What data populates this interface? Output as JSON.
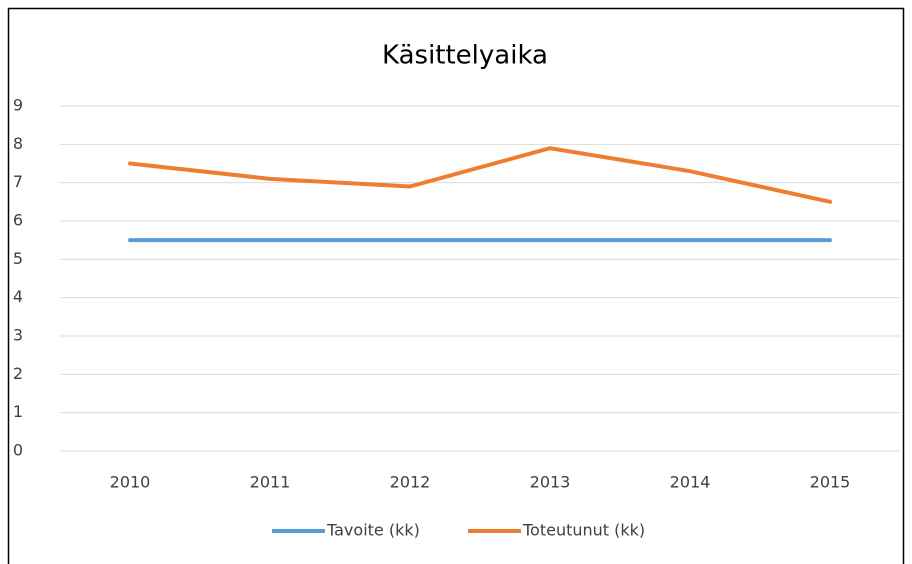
{
  "chart_data": {
    "type": "line",
    "title": "Käsittelyaika",
    "categories": [
      "2010",
      "2011",
      "2012",
      "2013",
      "2014",
      "2015"
    ],
    "series": [
      {
        "name": "Tavoite (kk)",
        "color": "#5b9bd5",
        "values": [
          5.5,
          5.5,
          5.5,
          5.5,
          5.5,
          5.5
        ]
      },
      {
        "name": "Toteutunut (kk)",
        "color": "#ed7d31",
        "values": [
          7.5,
          7.1,
          6.9,
          7.9,
          7.3,
          6.5
        ]
      }
    ],
    "ylim": [
      0,
      9
    ],
    "yticks": [
      0,
      1,
      2,
      3,
      4,
      5,
      6,
      7,
      8,
      9
    ],
    "grid": true,
    "legend": "bottom"
  }
}
